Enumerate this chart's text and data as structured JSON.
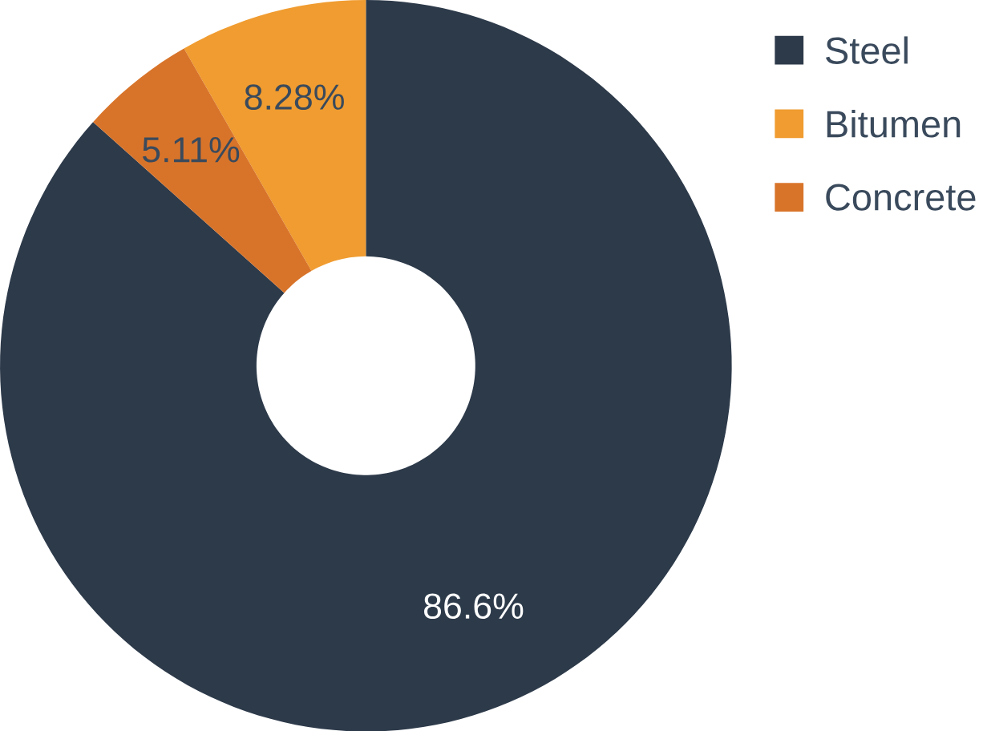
{
  "chart_data": {
    "type": "donut",
    "categories": [
      "Steel",
      "Bitumen",
      "Concrete"
    ],
    "values": [
      86.6,
      8.28,
      5.11
    ],
    "colors": [
      "#2d3a4a",
      "#f09c30",
      "#d8742a"
    ],
    "data_labels": true,
    "value_labels": [
      "86.6%",
      "8.28%",
      "5.11%"
    ],
    "legend": "top right"
  }
}
